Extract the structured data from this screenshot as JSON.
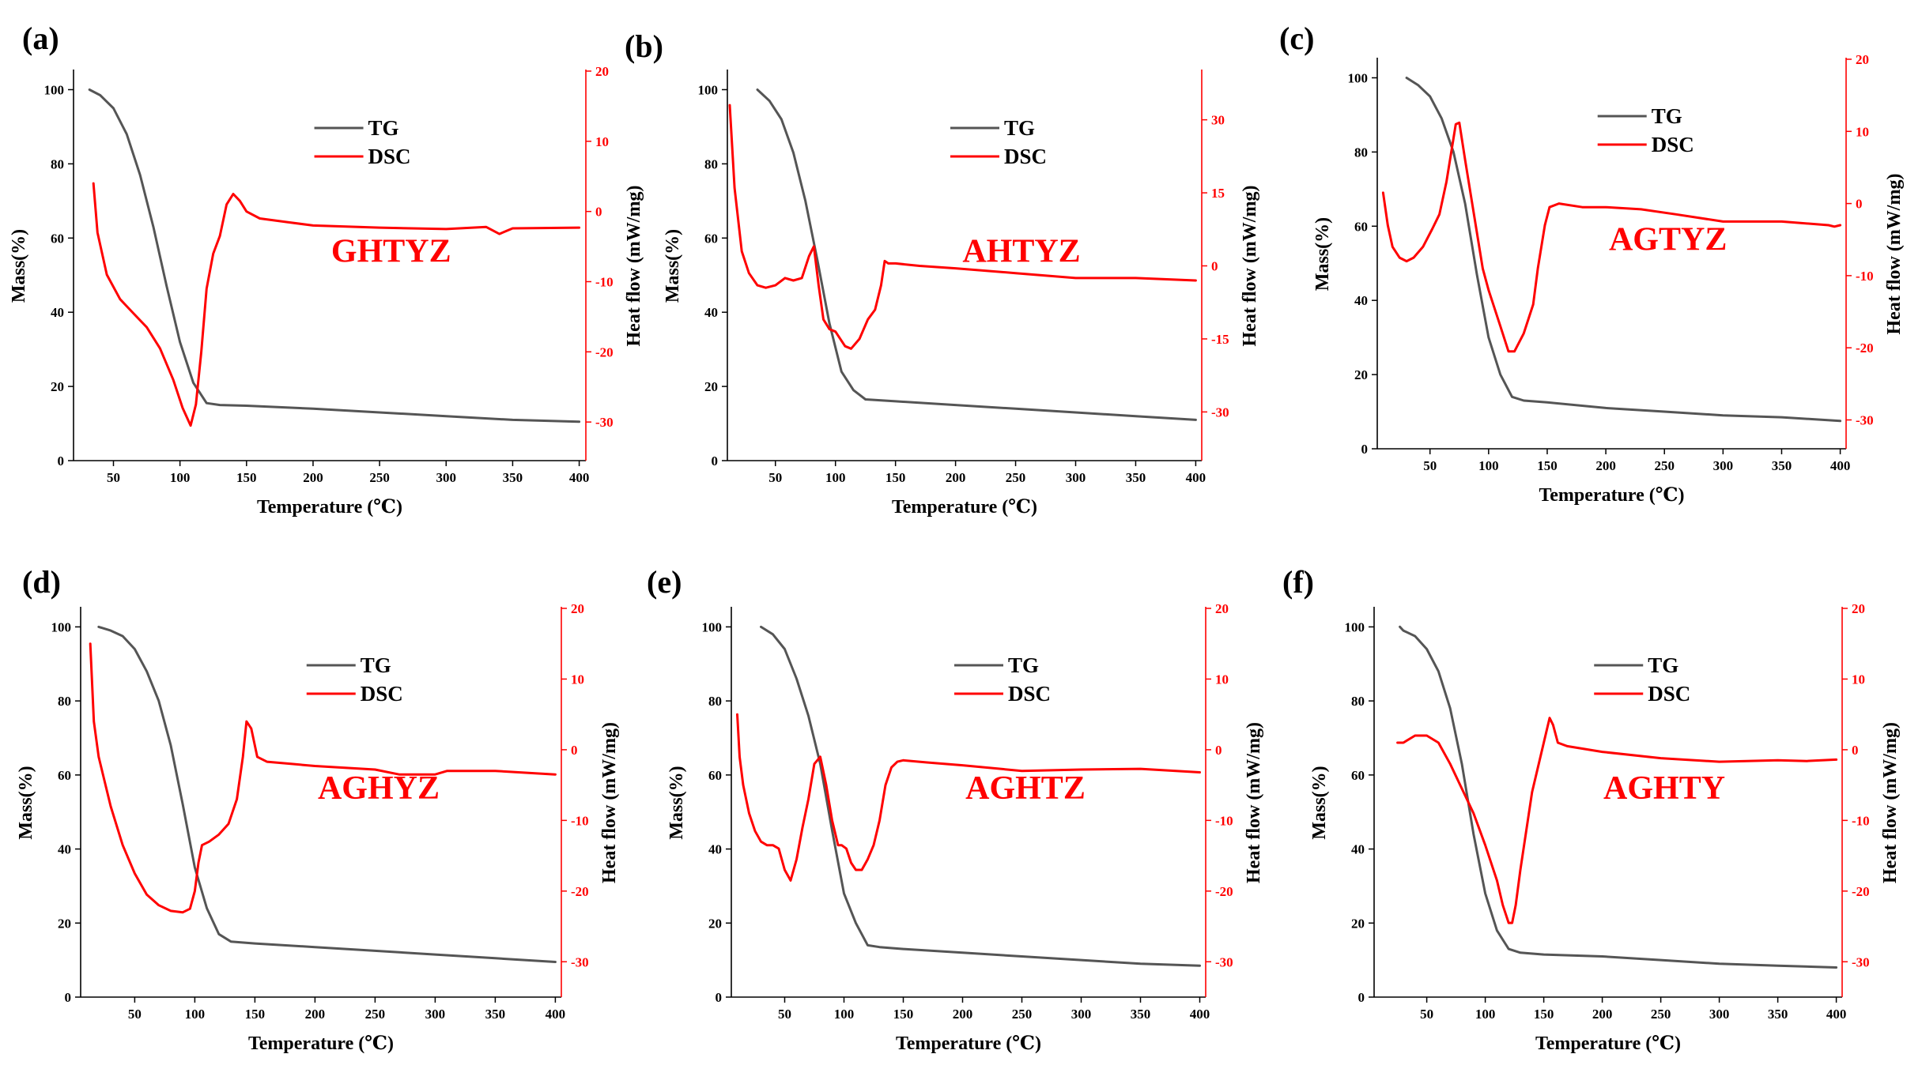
{
  "figure": {
    "colors": {
      "tg": "#555555",
      "dsc": "#ff0000",
      "axis": "#000000"
    }
  },
  "chart_data": [
    {
      "type": "line",
      "panel": "(a)",
      "sample": "GHTYZ",
      "xlabel": "Temperature (℃)",
      "ylabel_left": "Mass(%)",
      "ylabel_right": "Heat flow (mW/mg)",
      "xlim": [
        20,
        405
      ],
      "xticks": [
        50,
        100,
        150,
        200,
        250,
        300,
        350,
        400
      ],
      "ylim_left": [
        0,
        105
      ],
      "yticks_left": [
        0,
        20,
        40,
        60,
        80,
        100
      ],
      "ylim_right": [
        -35.5,
        20
      ],
      "yticks_right": [
        -30,
        -20,
        -10,
        0,
        10,
        20
      ],
      "legend": [
        "TG",
        "DSC"
      ],
      "series": [
        {
          "name": "TG",
          "axis": "left",
          "x": [
            32,
            40,
            50,
            60,
            70,
            80,
            90,
            100,
            110,
            120,
            130,
            150,
            200,
            250,
            300,
            350,
            400
          ],
          "values": [
            100,
            98.5,
            95,
            88,
            77,
            63,
            47,
            32,
            21,
            15.5,
            15,
            14.8,
            14,
            13,
            12,
            11,
            10.5
          ]
        },
        {
          "name": "DSC",
          "axis": "right",
          "x": [
            35,
            38,
            45,
            55,
            65,
            75,
            85,
            95,
            102,
            108,
            112,
            116,
            120,
            125,
            130,
            135,
            140,
            145,
            150,
            160,
            180,
            200,
            250,
            300,
            330,
            340,
            350,
            400
          ],
          "values": [
            4,
            -3,
            -9,
            -12.5,
            -14.5,
            -16.5,
            -19.5,
            -24,
            -28,
            -30.5,
            -27.5,
            -20,
            -11,
            -6,
            -3.5,
            1,
            2.5,
            1.5,
            0,
            -1,
            -1.5,
            -2,
            -2.3,
            -2.5,
            -2.2,
            -3.2,
            -2.4,
            -2.3
          ]
        }
      ]
    },
    {
      "type": "line",
      "panel": "(b)",
      "sample": "AHTYZ",
      "xlabel": "Temperature (℃)",
      "ylabel_left": "Mass(%)",
      "ylabel_right": "Heat flow (mW/mg)",
      "xlim": [
        10,
        405
      ],
      "xticks": [
        50,
        100,
        150,
        200,
        250,
        300,
        350,
        400
      ],
      "ylim_left": [
        0,
        105
      ],
      "yticks_left": [
        0,
        20,
        40,
        60,
        80,
        100
      ],
      "ylim_right": [
        -40,
        40
      ],
      "yticks_right": [
        -30,
        -15,
        0,
        15,
        30
      ],
      "legend": [
        "TG",
        "DSC"
      ],
      "series": [
        {
          "name": "TG",
          "axis": "left",
          "x": [
            35,
            45,
            55,
            65,
            75,
            85,
            95,
            105,
            115,
            125,
            150,
            200,
            250,
            300,
            350,
            400
          ],
          "values": [
            100,
            97,
            92,
            83,
            70,
            54,
            37,
            24,
            19,
            16.5,
            16,
            15,
            14,
            13,
            12,
            11
          ]
        },
        {
          "name": "DSC",
          "axis": "right",
          "x": [
            12,
            16,
            22,
            28,
            35,
            42,
            50,
            58,
            65,
            72,
            78,
            82,
            86,
            90,
            95,
            100,
            108,
            113,
            120,
            127,
            133,
            138,
            141,
            144,
            150,
            170,
            200,
            250,
            300,
            350,
            400
          ],
          "values": [
            33,
            16,
            3,
            -1.5,
            -4,
            -4.5,
            -4,
            -2.5,
            -3,
            -2.5,
            2,
            4,
            -4,
            -11,
            -13,
            -13.5,
            -16.5,
            -17,
            -15,
            -11,
            -9,
            -4,
            1,
            0.5,
            0.5,
            0,
            -0.5,
            -1.5,
            -2.5,
            -2.5,
            -3
          ]
        }
      ]
    },
    {
      "type": "line",
      "panel": "(c)",
      "sample": "AGTYZ",
      "xlabel": "Temperature (℃)",
      "ylabel_left": "Mass(%)",
      "ylabel_right": "Heat flow (mW/mg)",
      "xlim": [
        5,
        405
      ],
      "xticks": [
        50,
        100,
        150,
        200,
        250,
        300,
        350,
        400
      ],
      "ylim_left": [
        0,
        105
      ],
      "yticks_left": [
        0,
        20,
        40,
        60,
        80,
        100
      ],
      "ylim_right": [
        -34,
        20
      ],
      "yticks_right": [
        -30,
        -20,
        -10,
        0,
        10,
        20
      ],
      "legend": [
        "TG",
        "DSC"
      ],
      "series": [
        {
          "name": "TG",
          "axis": "left",
          "x": [
            30,
            40,
            50,
            60,
            70,
            80,
            90,
            100,
            110,
            120,
            130,
            150,
            200,
            250,
            300,
            350,
            400
          ],
          "values": [
            100,
            98,
            95,
            89,
            80,
            66,
            47,
            30,
            20,
            14,
            13,
            12.5,
            11,
            10,
            9,
            8.5,
            7.5
          ]
        },
        {
          "name": "DSC",
          "axis": "right",
          "x": [
            10,
            14,
            18,
            24,
            30,
            36,
            44,
            52,
            58,
            64,
            68,
            72,
            75,
            80,
            85,
            90,
            95,
            100,
            110,
            117,
            122,
            130,
            138,
            142,
            148,
            152,
            160,
            180,
            200,
            230,
            260,
            300,
            350,
            390,
            395,
            400
          ],
          "values": [
            1.5,
            -3,
            -6,
            -7.5,
            -8,
            -7.5,
            -6,
            -3.5,
            -1.5,
            3,
            7,
            11,
            11.2,
            6,
            1,
            -4,
            -9,
            -12,
            -17,
            -20.5,
            -20.5,
            -18,
            -14,
            -9,
            -3,
            -0.5,
            0,
            -0.5,
            -0.5,
            -0.8,
            -1.5,
            -2.5,
            -2.5,
            -3,
            -3.2,
            -3
          ]
        }
      ]
    },
    {
      "type": "line",
      "panel": "(d)",
      "sample": "AGHYZ",
      "xlabel": "Temperature (℃)",
      "ylabel_left": "Mass(%)",
      "ylabel_right": "Heat flow (mW/mg)",
      "xlim": [
        5,
        405
      ],
      "xticks": [
        50,
        100,
        150,
        200,
        250,
        300,
        350,
        400
      ],
      "ylim_left": [
        0,
        105
      ],
      "yticks_left": [
        0,
        20,
        40,
        60,
        80,
        100
      ],
      "ylim_right": [
        -35,
        20
      ],
      "yticks_right": [
        -30,
        -20,
        -10,
        0,
        10,
        20
      ],
      "legend": [
        "TG",
        "DSC"
      ],
      "series": [
        {
          "name": "TG",
          "axis": "left",
          "x": [
            20,
            30,
            40,
            50,
            60,
            70,
            80,
            90,
            100,
            110,
            120,
            130,
            150,
            200,
            250,
            300,
            350,
            400
          ],
          "values": [
            100,
            99,
            97.5,
            94,
            88,
            80,
            68,
            52,
            35,
            24,
            17,
            15,
            14.5,
            13.5,
            12.5,
            11.5,
            10.5,
            9.5
          ]
        },
        {
          "name": "DSC",
          "axis": "right",
          "x": [
            13,
            16,
            20,
            30,
            40,
            50,
            60,
            70,
            80,
            90,
            96,
            100,
            103,
            106,
            112,
            120,
            128,
            135,
            140,
            143,
            147,
            152,
            160,
            180,
            200,
            250,
            270,
            300,
            310,
            350,
            400
          ],
          "values": [
            15,
            4,
            -1,
            -8,
            -13.5,
            -17.5,
            -20.5,
            -22,
            -22.8,
            -23,
            -22.5,
            -20,
            -16,
            -13.5,
            -13,
            -12,
            -10.5,
            -7,
            -1,
            4,
            3,
            -1,
            -1.7,
            -2,
            -2.3,
            -2.8,
            -3.5,
            -3.5,
            -3,
            -3,
            -3.5
          ]
        }
      ]
    },
    {
      "type": "line",
      "panel": "(e)",
      "sample": "AGHTZ",
      "xlabel": "Temperature (℃)",
      "ylabel_left": "Mass(%)",
      "ylabel_right": "Heat flow (mW/mg)",
      "xlim": [
        5,
        405
      ],
      "xticks": [
        50,
        100,
        150,
        200,
        250,
        300,
        350,
        400
      ],
      "ylim_left": [
        0,
        105
      ],
      "yticks_left": [
        0,
        20,
        40,
        60,
        80,
        100
      ],
      "ylim_right": [
        -35,
        20
      ],
      "yticks_right": [
        -30,
        -20,
        -10,
        0,
        10,
        20
      ],
      "legend": [
        "TG",
        "DSC"
      ],
      "series": [
        {
          "name": "TG",
          "axis": "left",
          "x": [
            30,
            40,
            50,
            60,
            70,
            80,
            90,
            100,
            110,
            120,
            130,
            150,
            200,
            250,
            300,
            350,
            400
          ],
          "values": [
            100,
            98,
            94,
            86,
            76,
            63,
            45,
            28,
            20,
            14,
            13.5,
            13,
            12,
            11,
            10,
            9,
            8.5
          ]
        },
        {
          "name": "DSC",
          "axis": "right",
          "x": [
            10,
            12,
            15,
            20,
            25,
            30,
            35,
            40,
            45,
            50,
            55,
            60,
            65,
            70,
            75,
            80,
            85,
            90,
            95,
            98,
            102,
            106,
            110,
            115,
            120,
            125,
            130,
            135,
            140,
            145,
            150,
            170,
            200,
            250,
            300,
            350,
            400
          ],
          "values": [
            5,
            -1,
            -5,
            -9,
            -11.5,
            -13,
            -13.5,
            -13.5,
            -14,
            -17,
            -18.5,
            -15.5,
            -11,
            -7,
            -2,
            -1,
            -5,
            -10,
            -13.5,
            -13.5,
            -14,
            -16,
            -17,
            -17,
            -15.5,
            -13.5,
            -10,
            -5,
            -2.5,
            -1.7,
            -1.5,
            -1.8,
            -2.2,
            -3,
            -2.8,
            -2.7,
            -3.2
          ]
        }
      ]
    },
    {
      "type": "line",
      "panel": "(f)",
      "sample": "AGHTY",
      "xlabel": "Temperature (℃)",
      "ylabel_left": "Mass(%)",
      "ylabel_right": "Heat flow (mW/mg)",
      "xlim": [
        5,
        405
      ],
      "xticks": [
        50,
        100,
        150,
        200,
        250,
        300,
        350,
        400
      ],
      "ylim_left": [
        0,
        105
      ],
      "yticks_left": [
        0,
        20,
        40,
        60,
        80,
        100
      ],
      "ylim_right": [
        -35,
        20
      ],
      "yticks_right": [
        -30,
        -20,
        -10,
        0,
        10,
        20
      ],
      "legend": [
        "TG",
        "DSC"
      ],
      "series": [
        {
          "name": "TG",
          "axis": "left",
          "x": [
            27,
            30,
            40,
            50,
            60,
            70,
            80,
            90,
            100,
            110,
            120,
            130,
            150,
            200,
            250,
            300,
            350,
            400
          ],
          "values": [
            100,
            99,
            97.5,
            94,
            88,
            78,
            63,
            44,
            28,
            18,
            13,
            12,
            11.5,
            11,
            10,
            9,
            8.5,
            8
          ]
        },
        {
          "name": "DSC",
          "axis": "right",
          "x": [
            25,
            30,
            40,
            50,
            60,
            70,
            80,
            90,
            100,
            110,
            115,
            120,
            123,
            126,
            130,
            140,
            150,
            155,
            158,
            162,
            170,
            200,
            250,
            300,
            350,
            375,
            400
          ],
          "values": [
            1,
            1,
            2,
            2,
            1,
            -2,
            -5.5,
            -9,
            -13.5,
            -18.5,
            -22,
            -24.5,
            -24.5,
            -22,
            -17,
            -6,
            1,
            4.5,
            3.5,
            1,
            0.5,
            -0.3,
            -1.2,
            -1.7,
            -1.5,
            -1.6,
            -1.4
          ]
        }
      ]
    }
  ]
}
